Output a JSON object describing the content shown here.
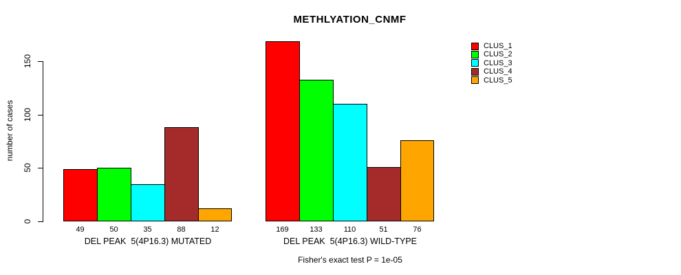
{
  "chart_data": {
    "type": "bar",
    "title": "METHLYATION_CNMF",
    "ylabel": "number of cases",
    "xlabel": "",
    "yticks": [
      0,
      50,
      100,
      150
    ],
    "ylim": [
      0,
      175
    ],
    "grid": false,
    "legend_position": "top-right",
    "bar_borders": "#000000",
    "categories": [
      "DEL PEAK  5(4P16.3) MUTATED",
      "DEL PEAK  5(4P16.3) WILD-TYPE"
    ],
    "series": [
      {
        "name": "CLUS_1",
        "color": "#FF0000",
        "values": [
          49,
          169
        ]
      },
      {
        "name": "CLUS_2",
        "color": "#00FF00",
        "values": [
          50,
          133
        ]
      },
      {
        "name": "CLUS_3",
        "color": "#00FFFF",
        "values": [
          35,
          110
        ]
      },
      {
        "name": "CLUS_4",
        "color": "#A52A2A",
        "values": [
          88,
          51
        ]
      },
      {
        "name": "CLUS_5",
        "color": "#FFA500",
        "values": [
          12,
          76
        ]
      }
    ],
    "bar_value_labels": [
      49,
      50,
      35,
      88,
      12,
      169,
      133,
      110,
      51,
      76
    ],
    "annotation": "Fisher's exact test P = 1e-05"
  }
}
